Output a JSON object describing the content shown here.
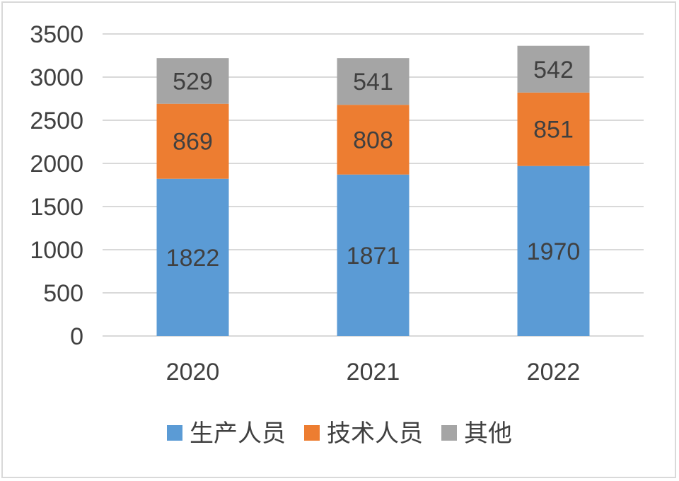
{
  "chart_data": {
    "type": "bar",
    "stacked": true,
    "categories": [
      "2020",
      "2021",
      "2022"
    ],
    "series": [
      {
        "name": "生产人员",
        "values": [
          1822,
          1871,
          1970
        ],
        "color": "#5b9bd5"
      },
      {
        "name": "技术人员",
        "values": [
          869,
          808,
          851
        ],
        "color": "#ed7d31"
      },
      {
        "name": "其他",
        "values": [
          529,
          541,
          542
        ],
        "color": "#a5a5a5"
      }
    ],
    "yticks": [
      "0",
      "500",
      "1000",
      "1500",
      "2000",
      "2500",
      "3000",
      "3500"
    ],
    "ylim": [
      0,
      3500
    ],
    "grid": true,
    "legend_position": "bottom",
    "data_labels": true
  }
}
